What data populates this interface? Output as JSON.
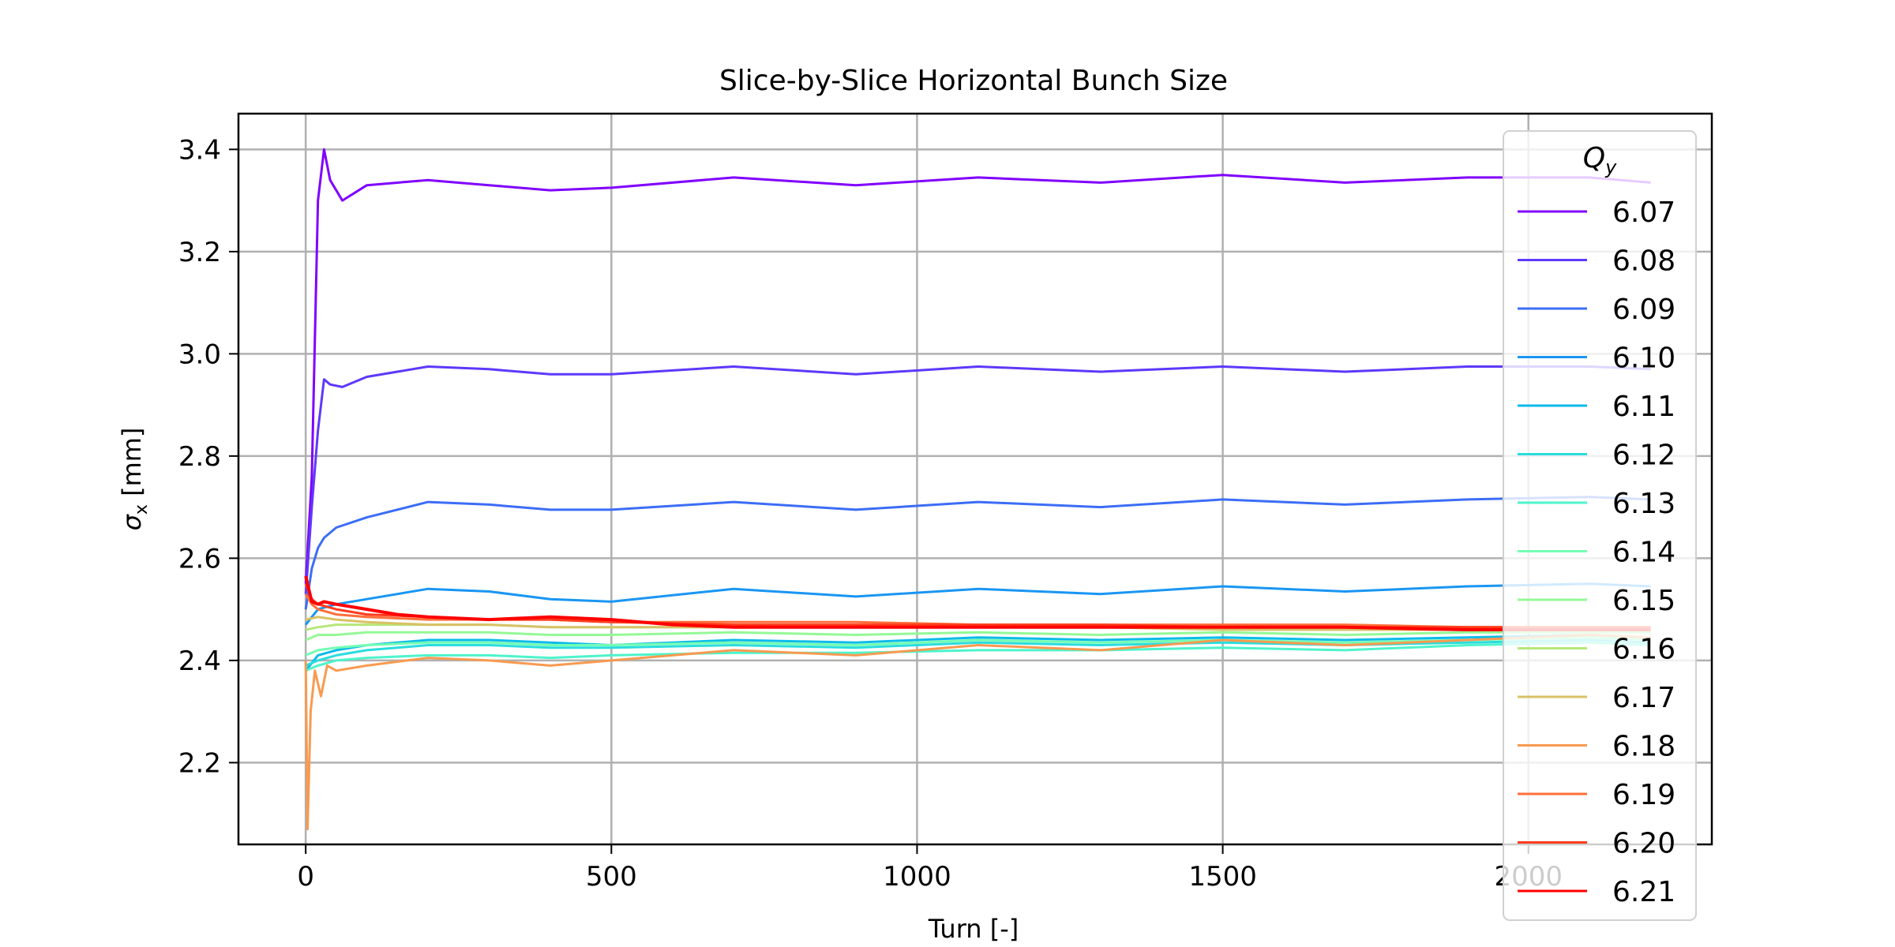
{
  "chart_data": {
    "type": "line",
    "title": "Slice-by-Slice Horizontal Bunch Size",
    "xlabel": "Turn [-]",
    "ylabel": "σx [mm]",
    "xlim": [
      -110,
      2300
    ],
    "ylim": [
      2.04,
      3.47
    ],
    "xticks": [
      0,
      500,
      1000,
      1500,
      2000
    ],
    "yticks": [
      2.2,
      2.4,
      2.6,
      2.8,
      3.0,
      3.2,
      3.4
    ],
    "grid": true,
    "legend": {
      "title": "Qy",
      "placement": "right"
    },
    "series": [
      {
        "name": "6.07",
        "color": "#8000ff",
        "x": [
          0,
          10,
          20,
          30,
          40,
          60,
          100,
          200,
          300,
          400,
          500,
          700,
          900,
          1100,
          1300,
          1500,
          1700,
          1900,
          2100,
          2200
        ],
        "y": [
          2.55,
          2.76,
          3.3,
          3.4,
          3.34,
          3.3,
          3.33,
          3.34,
          3.33,
          3.32,
          3.325,
          3.345,
          3.33,
          3.345,
          3.335,
          3.35,
          3.335,
          3.345,
          3.345,
          3.335
        ]
      },
      {
        "name": "6.08",
        "color": "#5e38fc",
        "x": [
          0,
          10,
          20,
          30,
          40,
          60,
          100,
          200,
          300,
          400,
          500,
          700,
          900,
          1100,
          1300,
          1500,
          1700,
          1900,
          2100,
          2200
        ],
        "y": [
          2.53,
          2.7,
          2.85,
          2.95,
          2.94,
          2.935,
          2.955,
          2.975,
          2.97,
          2.96,
          2.96,
          2.975,
          2.96,
          2.975,
          2.965,
          2.975,
          2.965,
          2.975,
          2.975,
          2.97
        ]
      },
      {
        "name": "6.09",
        "color": "#3c6df7",
        "x": [
          0,
          10,
          20,
          30,
          50,
          100,
          200,
          300,
          400,
          500,
          700,
          900,
          1100,
          1300,
          1500,
          1700,
          1900,
          2100,
          2200
        ],
        "y": [
          2.5,
          2.58,
          2.62,
          2.64,
          2.66,
          2.68,
          2.71,
          2.705,
          2.695,
          2.695,
          2.71,
          2.695,
          2.71,
          2.7,
          2.715,
          2.705,
          2.715,
          2.72,
          2.715
        ]
      },
      {
        "name": "6.10",
        "color": "#1996f3",
        "x": [
          0,
          20,
          50,
          100,
          200,
          300,
          400,
          500,
          700,
          900,
          1100,
          1300,
          1500,
          1700,
          1900,
          2100,
          2200
        ],
        "y": [
          2.47,
          2.5,
          2.51,
          2.52,
          2.54,
          2.535,
          2.52,
          2.515,
          2.54,
          2.525,
          2.54,
          2.53,
          2.545,
          2.535,
          2.545,
          2.55,
          2.545
        ]
      },
      {
        "name": "6.11",
        "color": "#0bbbe9",
        "x": [
          0,
          20,
          50,
          100,
          200,
          300,
          400,
          500,
          700,
          900,
          1100,
          1300,
          1500,
          1700,
          1900,
          2100,
          2200
        ],
        "y": [
          2.38,
          2.41,
          2.42,
          2.43,
          2.44,
          2.44,
          2.435,
          2.43,
          2.44,
          2.435,
          2.445,
          2.44,
          2.445,
          2.44,
          2.445,
          2.45,
          2.445
        ]
      },
      {
        "name": "6.12",
        "color": "#2adddd",
        "x": [
          0,
          20,
          50,
          100,
          200,
          300,
          400,
          500,
          700,
          900,
          1100,
          1300,
          1500,
          1700,
          1900,
          2100,
          2200
        ],
        "y": [
          2.39,
          2.4,
          2.41,
          2.42,
          2.43,
          2.43,
          2.425,
          2.425,
          2.43,
          2.425,
          2.435,
          2.43,
          2.435,
          2.43,
          2.435,
          2.44,
          2.435
        ]
      },
      {
        "name": "6.13",
        "color": "#4df4cb",
        "x": [
          0,
          20,
          50,
          100,
          200,
          300,
          400,
          500,
          700,
          900,
          1100,
          1300,
          1500,
          1700,
          1900,
          2100,
          2200
        ],
        "y": [
          2.38,
          2.39,
          2.4,
          2.405,
          2.41,
          2.41,
          2.405,
          2.41,
          2.415,
          2.415,
          2.42,
          2.42,
          2.425,
          2.42,
          2.43,
          2.435,
          2.43
        ]
      },
      {
        "name": "6.14",
        "color": "#73feb3",
        "x": [
          0,
          20,
          50,
          100,
          200,
          300,
          400,
          500,
          700,
          900,
          1100,
          1300,
          1500,
          1700,
          1900,
          2100,
          2200
        ],
        "y": [
          2.41,
          2.42,
          2.425,
          2.43,
          2.435,
          2.435,
          2.43,
          2.43,
          2.435,
          2.43,
          2.44,
          2.435,
          2.44,
          2.435,
          2.44,
          2.445,
          2.44
        ]
      },
      {
        "name": "6.15",
        "color": "#94f996",
        "x": [
          0,
          20,
          50,
          100,
          200,
          300,
          400,
          500,
          700,
          900,
          1100,
          1300,
          1500,
          1700,
          1900,
          2100,
          2200
        ],
        "y": [
          2.44,
          2.45,
          2.45,
          2.455,
          2.455,
          2.455,
          2.45,
          2.45,
          2.455,
          2.45,
          2.455,
          2.45,
          2.455,
          2.45,
          2.455,
          2.455,
          2.455
        ]
      },
      {
        "name": "6.16",
        "color": "#b6e77a",
        "x": [
          0,
          20,
          50,
          100,
          200,
          300,
          400,
          500,
          700,
          900,
          1100,
          1300,
          1500,
          1700,
          1900,
          2100,
          2200
        ],
        "y": [
          2.46,
          2.465,
          2.47,
          2.47,
          2.47,
          2.47,
          2.465,
          2.465,
          2.465,
          2.465,
          2.465,
          2.465,
          2.465,
          2.465,
          2.465,
          2.465,
          2.465
        ]
      },
      {
        "name": "6.17",
        "color": "#d8c266",
        "x": [
          0,
          20,
          50,
          100,
          200,
          300,
          400,
          500,
          700,
          900,
          1100,
          1300,
          1500,
          1700,
          1900,
          2100,
          2200
        ],
        "y": [
          2.48,
          2.485,
          2.48,
          2.475,
          2.47,
          2.47,
          2.465,
          2.465,
          2.465,
          2.465,
          2.465,
          2.465,
          2.46,
          2.46,
          2.46,
          2.46,
          2.46
        ]
      },
      {
        "name": "6.18",
        "color": "#f89a50",
        "x": [
          0,
          3,
          8,
          15,
          25,
          35,
          50,
          100,
          200,
          300,
          400,
          500,
          600,
          700,
          900,
          1100,
          1300,
          1500,
          1700,
          1900,
          2100,
          2200
        ],
        "y": [
          2.4,
          2.07,
          2.3,
          2.38,
          2.33,
          2.39,
          2.38,
          2.39,
          2.405,
          2.4,
          2.39,
          2.4,
          2.41,
          2.42,
          2.41,
          2.43,
          2.42,
          2.44,
          2.43,
          2.44,
          2.45,
          2.445
        ]
      },
      {
        "name": "6.19",
        "color": "#ff6e3a",
        "x": [
          0,
          10,
          20,
          50,
          100,
          200,
          300,
          400,
          500,
          700,
          900,
          1100,
          1300,
          1500,
          1700,
          1900,
          2100,
          2200
        ],
        "y": [
          2.53,
          2.51,
          2.5,
          2.49,
          2.485,
          2.48,
          2.48,
          2.48,
          2.475,
          2.475,
          2.475,
          2.47,
          2.47,
          2.47,
          2.47,
          2.465,
          2.465,
          2.465
        ]
      },
      {
        "name": "6.20",
        "color": "#ff3c1e",
        "x": [
          0,
          10,
          20,
          50,
          100,
          200,
          300,
          400,
          500,
          700,
          900,
          1100,
          1300,
          1500,
          1700,
          1900,
          2100,
          2200
        ],
        "y": [
          2.55,
          2.52,
          2.51,
          2.5,
          2.49,
          2.485,
          2.48,
          2.48,
          2.475,
          2.47,
          2.47,
          2.47,
          2.47,
          2.465,
          2.465,
          2.465,
          2.465,
          2.465
        ]
      },
      {
        "name": "6.21",
        "color": "#ff0000",
        "x": [
          0,
          5,
          10,
          20,
          30,
          50,
          100,
          150,
          200,
          300,
          400,
          500,
          600,
          700,
          900,
          1100,
          1300,
          1500,
          1700,
          1900,
          2100,
          2200
        ],
        "y": [
          2.565,
          2.54,
          2.515,
          2.51,
          2.515,
          2.51,
          2.5,
          2.49,
          2.485,
          2.48,
          2.485,
          2.48,
          2.47,
          2.465,
          2.465,
          2.465,
          2.465,
          2.465,
          2.465,
          2.46,
          2.46,
          2.46
        ]
      }
    ]
  }
}
